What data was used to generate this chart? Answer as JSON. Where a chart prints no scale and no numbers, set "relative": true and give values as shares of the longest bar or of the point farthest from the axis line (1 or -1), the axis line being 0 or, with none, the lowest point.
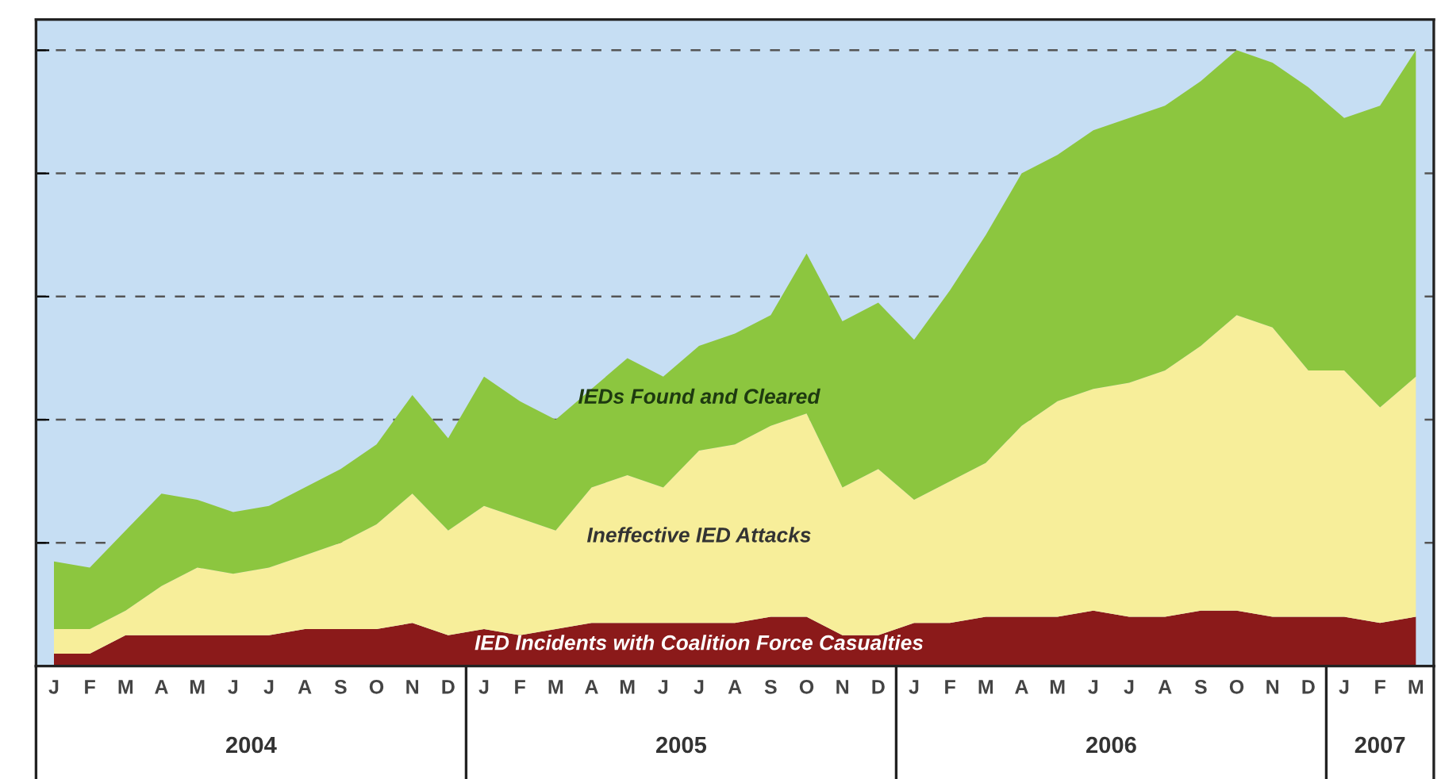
{
  "chart_data": {
    "type": "area",
    "stacked": true,
    "relative": true,
    "categories": [
      "J",
      "F",
      "M",
      "A",
      "M",
      "J",
      "J",
      "A",
      "S",
      "O",
      "N",
      "D",
      "J",
      "F",
      "M",
      "A",
      "M",
      "J",
      "J",
      "A",
      "S",
      "O",
      "N",
      "D",
      "J",
      "F",
      "M",
      "A",
      "M",
      "J",
      "J",
      "A",
      "S",
      "O",
      "N",
      "D",
      "J",
      "F",
      "M"
    ],
    "series": [
      {
        "name": "IED Incidents with Coalition Force Casualties",
        "color": "#8b1a1a",
        "values": [
          0.02,
          0.02,
          0.05,
          0.05,
          0.05,
          0.05,
          0.05,
          0.06,
          0.06,
          0.06,
          0.07,
          0.05,
          0.06,
          0.05,
          0.06,
          0.07,
          0.07,
          0.07,
          0.07,
          0.07,
          0.08,
          0.08,
          0.05,
          0.05,
          0.07,
          0.07,
          0.08,
          0.08,
          0.08,
          0.09,
          0.08,
          0.08,
          0.09,
          0.09,
          0.08,
          0.08,
          0.08,
          0.07,
          0.08
        ]
      },
      {
        "name": "Ineffective IED Attacks",
        "color": "#f7ee9a",
        "values": [
          0.04,
          0.04,
          0.04,
          0.08,
          0.11,
          0.1,
          0.11,
          0.12,
          0.14,
          0.17,
          0.21,
          0.17,
          0.2,
          0.19,
          0.16,
          0.22,
          0.24,
          0.22,
          0.28,
          0.29,
          0.31,
          0.33,
          0.24,
          0.27,
          0.2,
          0.23,
          0.25,
          0.31,
          0.35,
          0.36,
          0.38,
          0.4,
          0.43,
          0.48,
          0.47,
          0.4,
          0.4,
          0.35,
          0.39
        ]
      },
      {
        "name": "IEDs Found and Cleared",
        "color": "#8cc63f",
        "values": [
          0.11,
          0.1,
          0.13,
          0.15,
          0.11,
          0.1,
          0.1,
          0.11,
          0.12,
          0.13,
          0.16,
          0.15,
          0.21,
          0.19,
          0.18,
          0.16,
          0.19,
          0.18,
          0.17,
          0.18,
          0.18,
          0.26,
          0.27,
          0.27,
          0.26,
          0.31,
          0.37,
          0.41,
          0.4,
          0.42,
          0.43,
          0.43,
          0.43,
          0.43,
          0.43,
          0.46,
          0.41,
          0.49,
          0.53
        ]
      }
    ],
    "annotations": [
      "2004",
      "2005",
      "2006",
      "2007"
    ],
    "grid": "y",
    "legend": false,
    "tick_labels": "x"
  }
}
